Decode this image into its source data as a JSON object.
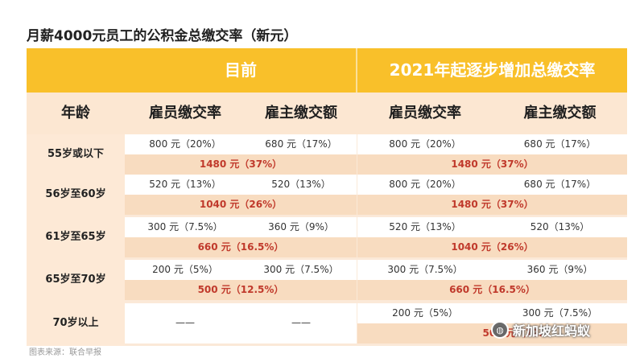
{
  "title": "月薪4000元员工的公积金总缴交率（新元）",
  "header_groups": [
    "目前",
    "2021年起逐步增加总缴交率"
  ],
  "columns": [
    "年龄",
    "雇员缴交率",
    "雇主缴交额",
    "雇员缴交率",
    "雇主缴交额"
  ],
  "rows": [
    {
      "age": "55岁或以下",
      "cur_employee": "800 元（20%）",
      "cur_employer": "680 元（17%）",
      "cur_total": "1480 元（37%）",
      "new_employee": "800 元（20%）",
      "new_employer": "680 元（17%）",
      "new_total": "1480 元（37%）"
    },
    {
      "age": "56岁至60岁",
      "cur_employee": "520 元（13%）",
      "cur_employer": "520（13%）",
      "cur_total": "1040 元（26%）",
      "new_employee": "800 元（20%）",
      "new_employer": "680 元（17%）",
      "new_total": "1480 元（37%）"
    },
    {
      "age": "61岁至65岁",
      "cur_employee": "300 元（7.5%）",
      "cur_employer": "360 元（9%）",
      "cur_total": "660 元（16.5%）",
      "new_employee": "520 元（13%）",
      "new_employer": "520（13%）",
      "new_total": "1040 元（26%）"
    },
    {
      "age": "65岁至70岁",
      "cur_employee": "200 元（5%）",
      "cur_employer": "300 元（7.5%）",
      "cur_total": "500 元（12.5%）",
      "new_employee": "300 元（7.5%）",
      "new_employer": "360 元（9%）",
      "new_total": "660 元（16.5%）"
    },
    {
      "age": "70岁以上",
      "cur_employee": "——",
      "cur_employer": "——",
      "cur_total": "",
      "new_employee": "200 元（5%）",
      "new_employer": "300 元（7.5%）",
      "new_total": "500 元（12."
    }
  ],
  "source": "图表来源：联合早报",
  "watermark": "新加坡红蚂蚁",
  "colors": {
    "header": "#f9c02a",
    "total_text": "#c0392b",
    "band": "#f8dcc0"
  }
}
